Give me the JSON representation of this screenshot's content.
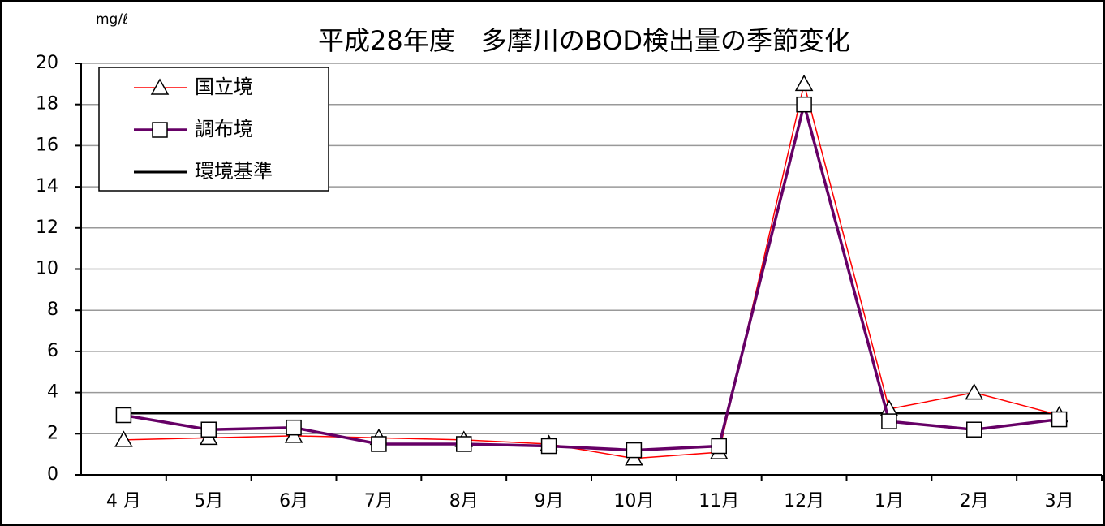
{
  "chart_data": {
    "type": "line",
    "title": "平成28年度　多摩川のBOD検出量の季節変化",
    "y_unit": "mg/ℓ",
    "categories": [
      "4 月",
      "5月",
      "6月",
      "7月",
      "8月",
      "9月",
      "10月",
      "11月",
      "12月",
      "1月",
      "2月",
      "3月"
    ],
    "series": [
      {
        "name": "国立境",
        "color": "#ff0000",
        "marker": "triangle",
        "width": 1.5,
        "values": [
          1.7,
          1.8,
          1.9,
          1.8,
          1.7,
          1.5,
          0.8,
          1.1,
          19,
          3.2,
          4.0,
          2.9
        ]
      },
      {
        "name": "調布境",
        "color": "#660066",
        "marker": "square",
        "width": 3.5,
        "values": [
          2.9,
          2.2,
          2.3,
          1.5,
          1.5,
          1.4,
          1.2,
          1.4,
          18,
          2.6,
          2.2,
          2.7
        ]
      },
      {
        "name": "環境基準",
        "color": "#000000",
        "marker": "none",
        "width": 3,
        "values": [
          3,
          3,
          3,
          3,
          3,
          3,
          3,
          3,
          3,
          3,
          3,
          3
        ]
      }
    ],
    "ylim": [
      0,
      20
    ],
    "yticks": [
      0,
      2,
      4,
      6,
      8,
      10,
      12,
      14,
      16,
      18,
      20
    ],
    "grid": true,
    "legend": "upper left"
  }
}
